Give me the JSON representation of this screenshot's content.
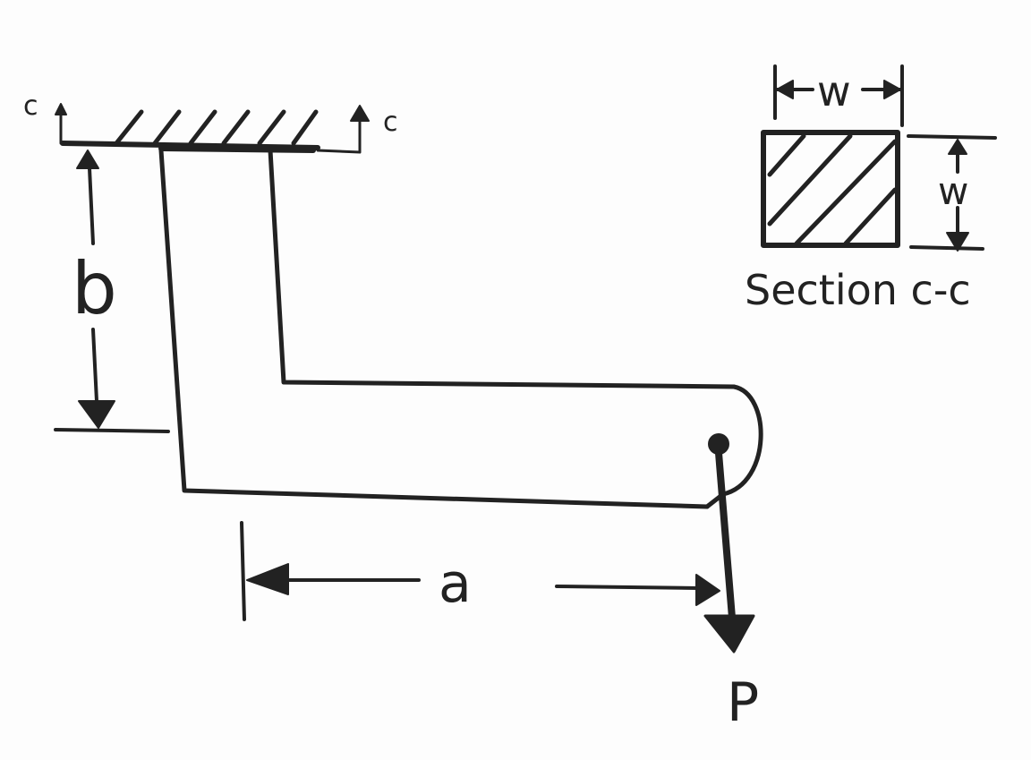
{
  "labels": {
    "section_cut_left": "c",
    "section_cut_right": "c",
    "dim_b": "b",
    "dim_a": "a",
    "load": "P",
    "width_top": "w",
    "width_side": "w",
    "section_caption": "Section c-c"
  }
}
